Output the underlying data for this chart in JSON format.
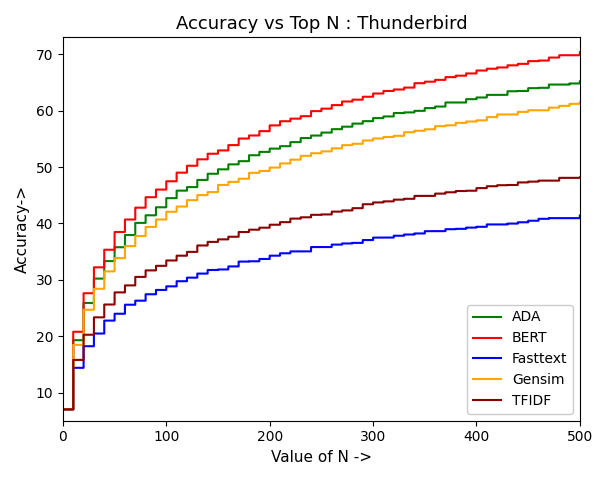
{
  "title": "Accuracy vs Top N : Thunderbird",
  "xlabel": "Value of N ->",
  "ylabel": "Accuracy->",
  "xlim": [
    0,
    500
  ],
  "ylim": [
    5,
    73
  ],
  "series": {
    "ADA": {
      "color": "green",
      "end_val": 65.0,
      "start_val": 7.0,
      "seed": 10
    },
    "BERT": {
      "color": "red",
      "end_val": 70.0,
      "start_val": 7.0,
      "seed": 20
    },
    "Fasttext": {
      "color": "blue",
      "end_val": 41.0,
      "start_val": 7.0,
      "seed": 30
    },
    "Gensim": {
      "color": "orange",
      "end_val": 61.0,
      "start_val": 7.0,
      "seed": 40
    },
    "TFIDF": {
      "color": "#8B0000",
      "end_val": 48.0,
      "start_val": 7.0,
      "seed": 50
    }
  },
  "yticks": [
    10,
    20,
    30,
    40,
    50,
    60,
    70
  ],
  "xticks": [
    0,
    100,
    200,
    300,
    400,
    500
  ],
  "legend_loc": "lower right",
  "step_size": 10
}
